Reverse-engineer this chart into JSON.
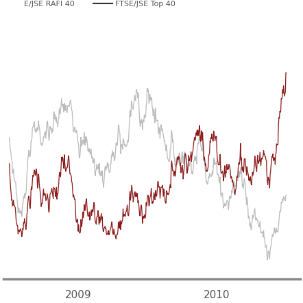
{
  "legend_label1": "E/JSE RAFI 40",
  "legend_label2": "FTSE/JSE Top 40",
  "line1_color": "#8B1A1A",
  "line2_color": "#BBBBBB",
  "background_color": "#FFFFFF",
  "x_tick_labels": [
    "2009",
    "2010",
    ""
  ],
  "figsize": [
    4.42,
    4.42
  ],
  "dpi": 100,
  "line_width": 0.9,
  "seed": 7,
  "n_points": 600,
  "legend_text_color": "#555555",
  "spine_color": "#888888",
  "tick_fontsize": 11,
  "legend_fontsize": 8
}
